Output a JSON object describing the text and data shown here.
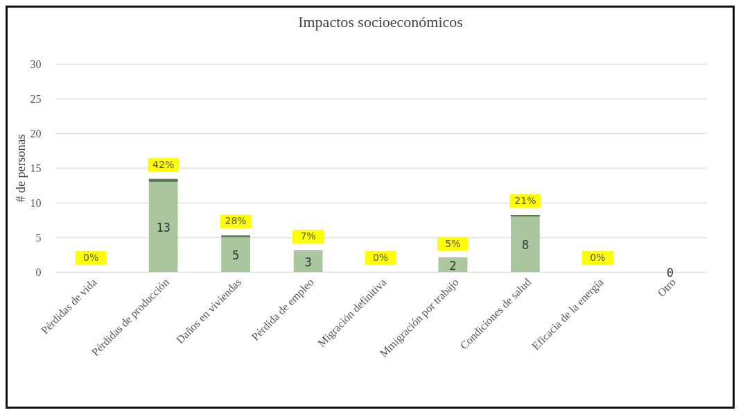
{
  "chart_data": {
    "type": "bar",
    "title": "Impactos socioeconómicos",
    "ylabel": "# de personas",
    "categories": [
      "Pérdidas de vida",
      "Pérdidas de producción",
      "Daños en viviendas",
      "Pérdida de empleo",
      "Migración definitiva",
      "Mmigración por trabajo",
      "Condiciones de salud",
      "Eficacia de la energía",
      "Otro"
    ],
    "stacked": true,
    "series": [
      {
        "color": "#a9c69f",
        "values": [
          0,
          13,
          5,
          3,
          0,
          2,
          8,
          0,
          0
        ],
        "value_labels": [
          null,
          "13",
          "5",
          "3",
          null,
          "2",
          "8",
          null,
          "0"
        ]
      },
      {
        "color": "#5b7b52",
        "values": [
          0,
          0.42,
          0.28,
          0.07,
          0,
          0.05,
          0.21,
          0,
          null
        ],
        "value_labels": [
          "0%",
          "42%",
          "28%",
          "7%",
          "0%",
          "5%",
          "21%",
          "0%",
          null
        ]
      }
    ],
    "ylim": [
      0,
      30
    ],
    "yticks": [
      0,
      5,
      10,
      15,
      20,
      25,
      30
    ],
    "grid": "y"
  }
}
